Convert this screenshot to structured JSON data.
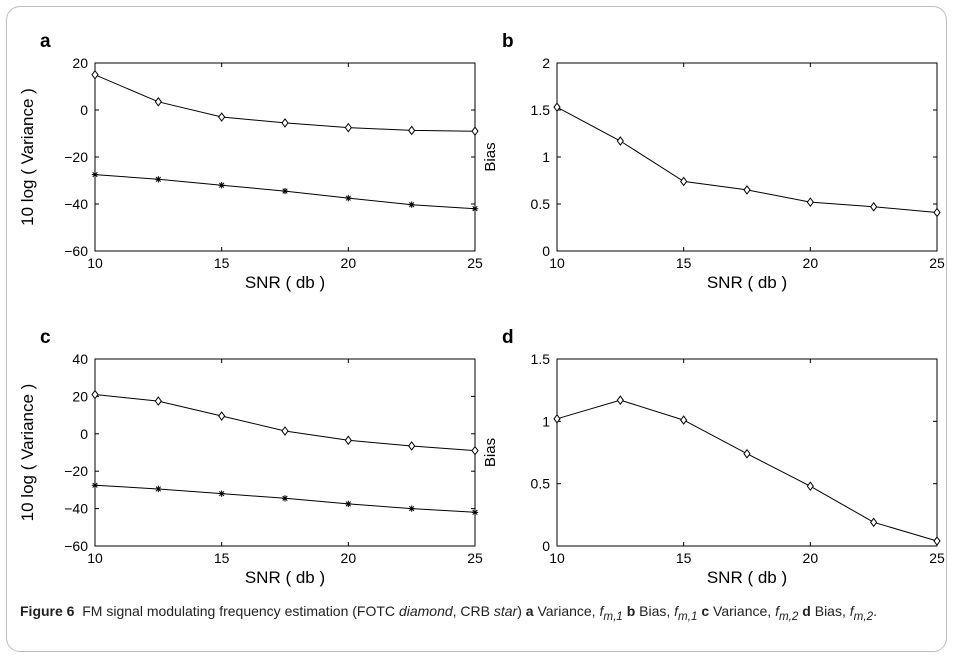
{
  "charts": [
    {
      "panel_letter": "a",
      "type": "line",
      "xlabel": "SNR ( db )",
      "ylabel": "10 log ( Variance )",
      "xlim": [
        10,
        25
      ],
      "ylim": [
        -60,
        20
      ],
      "xticks": [
        10,
        15,
        20,
        25
      ],
      "yticks": [
        -60,
        -40,
        -20,
        0,
        20
      ],
      "xtick_labels": [
        "10",
        "15",
        "20",
        "25"
      ],
      "ytick_labels": [
        "−60",
        "−40",
        "−20",
        "0",
        "20"
      ],
      "x": [
        10,
        12.5,
        15,
        17.5,
        20,
        22.5,
        25
      ],
      "series": [
        {
          "name": "FOTC",
          "marker": "diamond",
          "values": [
            15,
            3.5,
            -3,
            -5.5,
            -7.5,
            -8.7,
            -9
          ]
        },
        {
          "name": "CRB",
          "marker": "star",
          "values": [
            -27.5,
            -29.5,
            -32,
            -34.5,
            -37.5,
            -40.3,
            -42
          ]
        }
      ]
    },
    {
      "panel_letter": "b",
      "type": "line",
      "xlabel": "SNR ( db )",
      "ylabel": "Bias",
      "xlim": [
        10,
        25
      ],
      "ylim": [
        0,
        2
      ],
      "xticks": [
        10,
        15,
        20,
        25
      ],
      "yticks": [
        0,
        0.5,
        1,
        1.5,
        2
      ],
      "xtick_labels": [
        "10",
        "15",
        "20",
        "25"
      ],
      "ytick_labels": [
        "0",
        "0.5",
        "1",
        "1.5",
        "2"
      ],
      "x": [
        10,
        12.5,
        15,
        17.5,
        20,
        22.5,
        25
      ],
      "series": [
        {
          "name": "FOTC",
          "marker": "diamond",
          "values": [
            1.53,
            1.17,
            0.74,
            0.65,
            0.52,
            0.47,
            0.41
          ]
        }
      ]
    },
    {
      "panel_letter": "c",
      "type": "line",
      "xlabel": "SNR ( db )",
      "ylabel": "10 log ( Variance )",
      "xlim": [
        10,
        25
      ],
      "ylim": [
        -60,
        40
      ],
      "xticks": [
        10,
        15,
        20,
        25
      ],
      "yticks": [
        -60,
        -40,
        -20,
        0,
        20,
        40
      ],
      "xtick_labels": [
        "10",
        "15",
        "20",
        "25"
      ],
      "ytick_labels": [
        "−60",
        "−40",
        "−20",
        "0",
        "20",
        "40"
      ],
      "x": [
        10,
        12.5,
        15,
        17.5,
        20,
        22.5,
        25
      ],
      "series": [
        {
          "name": "FOTC",
          "marker": "diamond",
          "values": [
            21,
            17.5,
            9.5,
            1.5,
            -3.5,
            -6.5,
            -9
          ]
        },
        {
          "name": "CRB",
          "marker": "star",
          "values": [
            -27.5,
            -29.5,
            -32,
            -34.5,
            -37.5,
            -40,
            -42
          ]
        }
      ]
    },
    {
      "panel_letter": "d",
      "type": "line",
      "xlabel": "SNR ( db )",
      "ylabel": "Bias",
      "xlim": [
        10,
        25
      ],
      "ylim": [
        0,
        1.5
      ],
      "xticks": [
        10,
        15,
        20,
        25
      ],
      "yticks": [
        0,
        0.5,
        1,
        1.5
      ],
      "xtick_labels": [
        "10",
        "15",
        "20",
        "25"
      ],
      "ytick_labels": [
        "0",
        "0.5",
        "1",
        "1.5"
      ],
      "x": [
        10,
        12.5,
        15,
        17.5,
        20,
        22.5,
        25
      ],
      "series": [
        {
          "name": "FOTC",
          "marker": "diamond",
          "values": [
            1.02,
            1.17,
            1.01,
            0.74,
            0.48,
            0.19,
            0.04
          ]
        }
      ]
    }
  ],
  "caption": {
    "figure_label": "Figure 6",
    "text_1": "FM signal modulating frequency estimation (FOTC ",
    "diamond_word": "diamond",
    "text_2": ", CRB ",
    "star_word": "star",
    "text_3": ") ",
    "a_letter": "a",
    "a_text": " Variance, ",
    "b_letter": "b",
    "b_text": " Bias, ",
    "c_letter": "c",
    "c_text": " Variance, ",
    "d_letter": "d",
    "d_text": " Bias, ",
    "f_symbol": "f",
    "sub_m1": "m,1",
    "sub_m2": "m,2",
    "end_text": "."
  }
}
